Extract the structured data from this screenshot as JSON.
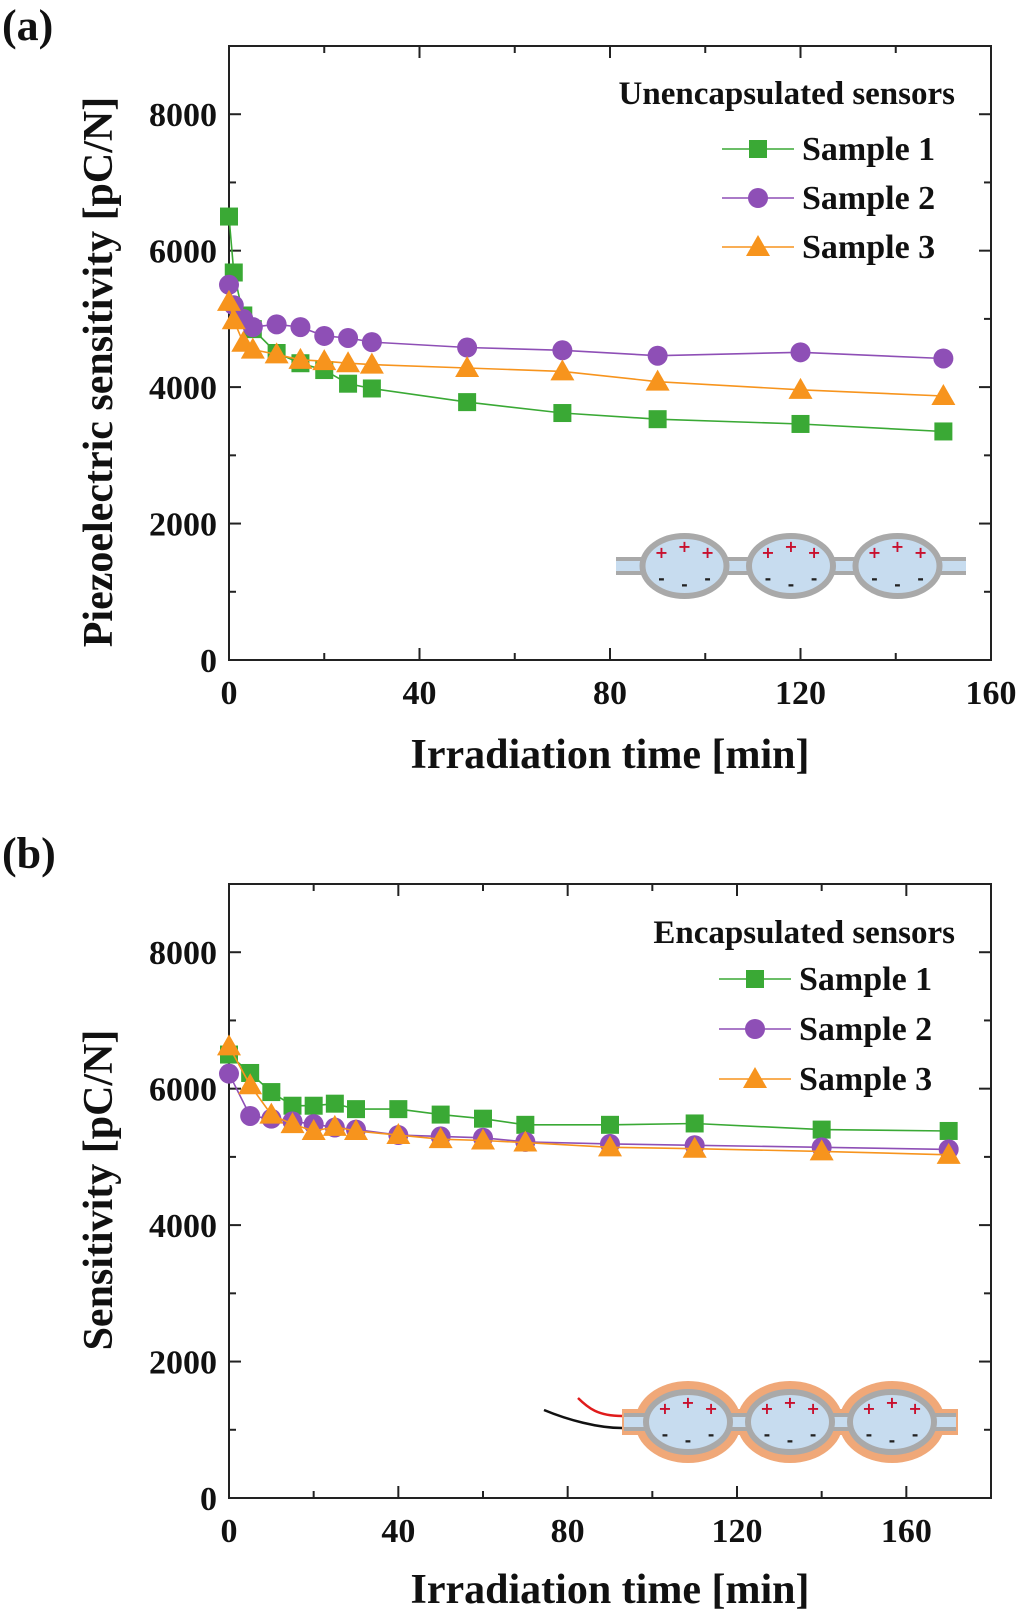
{
  "colors": {
    "series": [
      "#3aa935",
      "#8e4fb6",
      "#f7941d"
    ],
    "axis": "#222222",
    "cell_fill": "#c7dcef",
    "cell_wall": "#a9a9a9",
    "plus": "#c8102e",
    "minus": "#222222",
    "encapsulation": "#f0a878",
    "wire_red": "#e01b1b",
    "wire_black": "#111111"
  },
  "chart_data": [
    {
      "panel_label": "(a)",
      "type": "line",
      "title": "",
      "xlabel": "Irradiation time [min]",
      "ylabel": "Piezoelectric sensitivity [pC/N]",
      "xlim": [
        0,
        160
      ],
      "ylim": [
        0,
        9000
      ],
      "xticks": [
        0,
        40,
        80,
        120,
        160
      ],
      "yticks": [
        0,
        2000,
        4000,
        6000,
        8000
      ],
      "grid": false,
      "legend_title": "Unencapsulated sensors",
      "legend_position": "top-right",
      "series": [
        {
          "name": "Sample 1",
          "marker": "square",
          "x": [
            0,
            1,
            3,
            5,
            10,
            15,
            20,
            25,
            30,
            50,
            70,
            90,
            120,
            150
          ],
          "y": [
            6500,
            5680,
            5050,
            4850,
            4500,
            4350,
            4250,
            4050,
            3980,
            3780,
            3620,
            3530,
            3460,
            3350
          ]
        },
        {
          "name": "Sample 2",
          "marker": "circle",
          "x": [
            0,
            1,
            3,
            5,
            10,
            15,
            20,
            25,
            30,
            50,
            70,
            90,
            120,
            150
          ],
          "y": [
            5500,
            5200,
            5000,
            4880,
            4920,
            4880,
            4750,
            4720,
            4660,
            4580,
            4540,
            4460,
            4510,
            4420
          ]
        },
        {
          "name": "Sample 3",
          "marker": "triangle",
          "x": [
            0,
            1,
            3,
            5,
            10,
            15,
            20,
            25,
            30,
            50,
            70,
            90,
            120,
            150
          ],
          "y": [
            5250,
            4980,
            4650,
            4550,
            4480,
            4400,
            4380,
            4350,
            4330,
            4280,
            4230,
            4080,
            3960,
            3870
          ]
        }
      ],
      "inset": {
        "kind": "cellular-ferroelectret",
        "encapsulated": false,
        "cells": 3,
        "charge_signs": [
          "+",
          "-"
        ]
      }
    },
    {
      "panel_label": "(b)",
      "type": "line",
      "title": "",
      "xlabel": "Irradiation time [min]",
      "ylabel": "Sensitivity [pC/N]",
      "xlim": [
        0,
        180
      ],
      "ylim": [
        0,
        9000
      ],
      "xticks": [
        0,
        40,
        80,
        120,
        160
      ],
      "yticks": [
        0,
        2000,
        4000,
        6000,
        8000
      ],
      "grid": false,
      "legend_title": "Encapsulated sensors",
      "legend_position": "top-right",
      "series": [
        {
          "name": "Sample 1",
          "marker": "square",
          "x": [
            0,
            5,
            10,
            15,
            20,
            25,
            30,
            40,
            50,
            60,
            70,
            90,
            110,
            140,
            170
          ],
          "y": [
            6500,
            6230,
            5950,
            5750,
            5750,
            5780,
            5700,
            5700,
            5620,
            5560,
            5470,
            5470,
            5490,
            5400,
            5380
          ]
        },
        {
          "name": "Sample 2",
          "marker": "circle",
          "x": [
            0,
            5,
            10,
            15,
            20,
            25,
            30,
            40,
            50,
            60,
            70,
            90,
            110,
            140,
            170
          ],
          "y": [
            6220,
            5600,
            5560,
            5520,
            5480,
            5430,
            5400,
            5320,
            5300,
            5280,
            5220,
            5190,
            5170,
            5140,
            5110
          ]
        },
        {
          "name": "Sample 3",
          "marker": "triangle",
          "x": [
            0,
            5,
            10,
            15,
            20,
            25,
            30,
            40,
            50,
            60,
            70,
            90,
            110,
            140,
            170
          ],
          "y": [
            6620,
            6050,
            5620,
            5480,
            5380,
            5440,
            5380,
            5320,
            5260,
            5240,
            5210,
            5140,
            5120,
            5080,
            5030
          ]
        }
      ],
      "inset": {
        "kind": "cellular-ferroelectret",
        "encapsulated": true,
        "cells": 3,
        "charge_signs": [
          "+",
          "-"
        ]
      }
    }
  ]
}
